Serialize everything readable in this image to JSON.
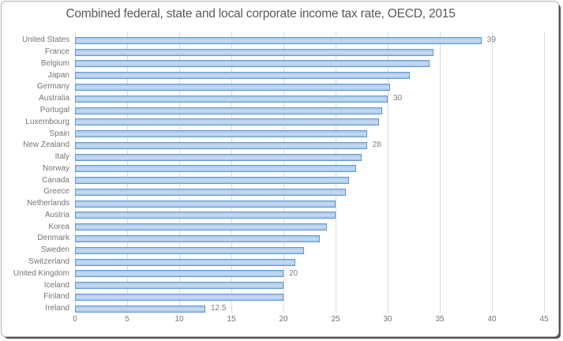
{
  "chart_data": {
    "type": "bar",
    "orientation": "horizontal",
    "title": "Combined federal, state and local corporate income tax rate, OECD, 2015",
    "xlabel": "",
    "ylabel": "",
    "xlim": [
      0,
      45
    ],
    "x_ticks": [
      0,
      5,
      10,
      15,
      20,
      25,
      30,
      35,
      40,
      45
    ],
    "grid": true,
    "legend": "none",
    "categories": [
      "United States",
      "France",
      "Belgium",
      "Japan",
      "Germany",
      "Australia",
      "Portugal",
      "Luxembourg",
      "Spain",
      "New Zealand",
      "Italy",
      "Norway",
      "Canada",
      "Greece",
      "Netherlands",
      "Austria",
      "Korea",
      "Denmark",
      "Sweden",
      "Switzerland",
      "United Kingdom",
      "Iceland",
      "Finland",
      "Ireland"
    ],
    "values": [
      39,
      34.4,
      34,
      32.1,
      30.2,
      30,
      29.5,
      29.2,
      28,
      28,
      27.5,
      27,
      26.3,
      26,
      25,
      25,
      24.2,
      23.5,
      22,
      21.1,
      20,
      20,
      20,
      12.5
    ],
    "shown_data_labels": [
      "39",
      null,
      null,
      null,
      null,
      "30",
      null,
      null,
      null,
      "28",
      null,
      null,
      null,
      null,
      null,
      null,
      null,
      null,
      null,
      null,
      "20",
      null,
      null,
      "12.5"
    ],
    "colors": {
      "bar_fill": "#a6c4e7",
      "bar_fill_mid": "#c7daf2",
      "bar_border": "#5b9bd5",
      "gridline": "#d9d9d9",
      "title_text": "#595959",
      "axis_text": "#757575",
      "data_label_text": "#7f7f7f",
      "frame_border": "#b2b2b2",
      "frame_shadow": "#4a4a4a",
      "background": "#ffffff"
    }
  }
}
